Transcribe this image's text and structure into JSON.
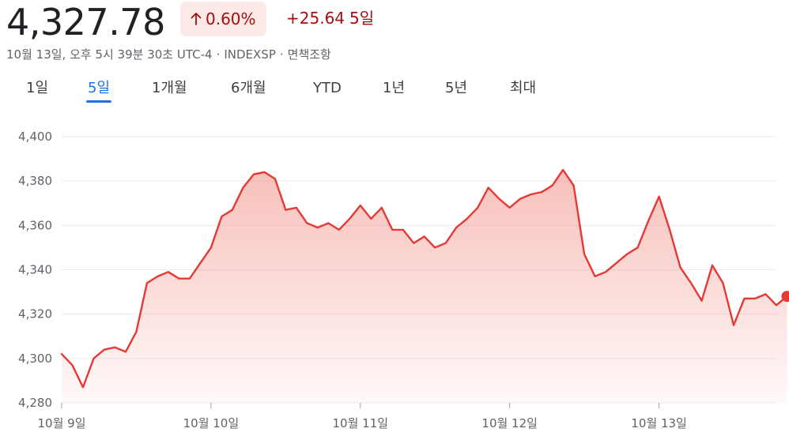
{
  "header": {
    "price": "4,327.78",
    "pct_change": "0.60%",
    "abs_change": "+25.64",
    "period": "5일",
    "timestamp": "10월 13일, 오후 5시 39분 30초 UTC-4",
    "exchange": "INDEXSP",
    "disclaimer": "면책조항",
    "separator": "·"
  },
  "tabs": [
    {
      "label": "1일",
      "active": false
    },
    {
      "label": "5일",
      "active": true
    },
    {
      "label": "1개월",
      "active": false
    },
    {
      "label": "6개월",
      "active": false
    },
    {
      "label": "YTD",
      "active": false
    },
    {
      "label": "1년",
      "active": false
    },
    {
      "label": "5년",
      "active": false
    },
    {
      "label": "최대",
      "active": false
    }
  ],
  "colors": {
    "line": "#e53935",
    "fill": "#f28b82",
    "badge_bg": "#fce8e6",
    "change_text": "#a50e0e",
    "active_tab": "#1a73e8",
    "grid": "#e8eaed"
  },
  "icons": {
    "change_direction": "arrow-up-icon"
  },
  "chart_data": {
    "type": "area",
    "ylim": [
      4280,
      4400
    ],
    "yticks": [
      4280,
      4300,
      4320,
      4340,
      4360,
      4380,
      4400
    ],
    "ytick_labels": [
      "4,280",
      "4,300",
      "4,320",
      "4,340",
      "4,360",
      "4,380",
      "4,400"
    ],
    "xlim": [
      0,
      67
    ],
    "xtick_positions": [
      0,
      14,
      28,
      42,
      56
    ],
    "xtick_labels": [
      "10월 9일",
      "10월 10일",
      "10월 11일",
      "10월 12일",
      "10월 13일"
    ],
    "grid": true,
    "end_marker": true,
    "values": [
      4302,
      4297,
      4287,
      4300,
      4304,
      4305,
      4303,
      4312,
      4334,
      4337,
      4339,
      4336,
      4336,
      4343,
      4350,
      4364,
      4367,
      4377,
      4383,
      4384,
      4381,
      4367,
      4368,
      4361,
      4359,
      4361,
      4358,
      4363,
      4369,
      4363,
      4368,
      4358,
      4358,
      4352,
      4355,
      4350,
      4352,
      4359,
      4363,
      4368,
      4377,
      4372,
      4368,
      4372,
      4374,
      4375,
      4378,
      4385,
      4378,
      4347,
      4337,
      4339,
      4343,
      4347,
      4350,
      4362,
      4373,
      4358,
      4341,
      4334,
      4326,
      4342,
      4334,
      4315,
      4327,
      4327,
      4329,
      4324,
      4328
    ]
  }
}
